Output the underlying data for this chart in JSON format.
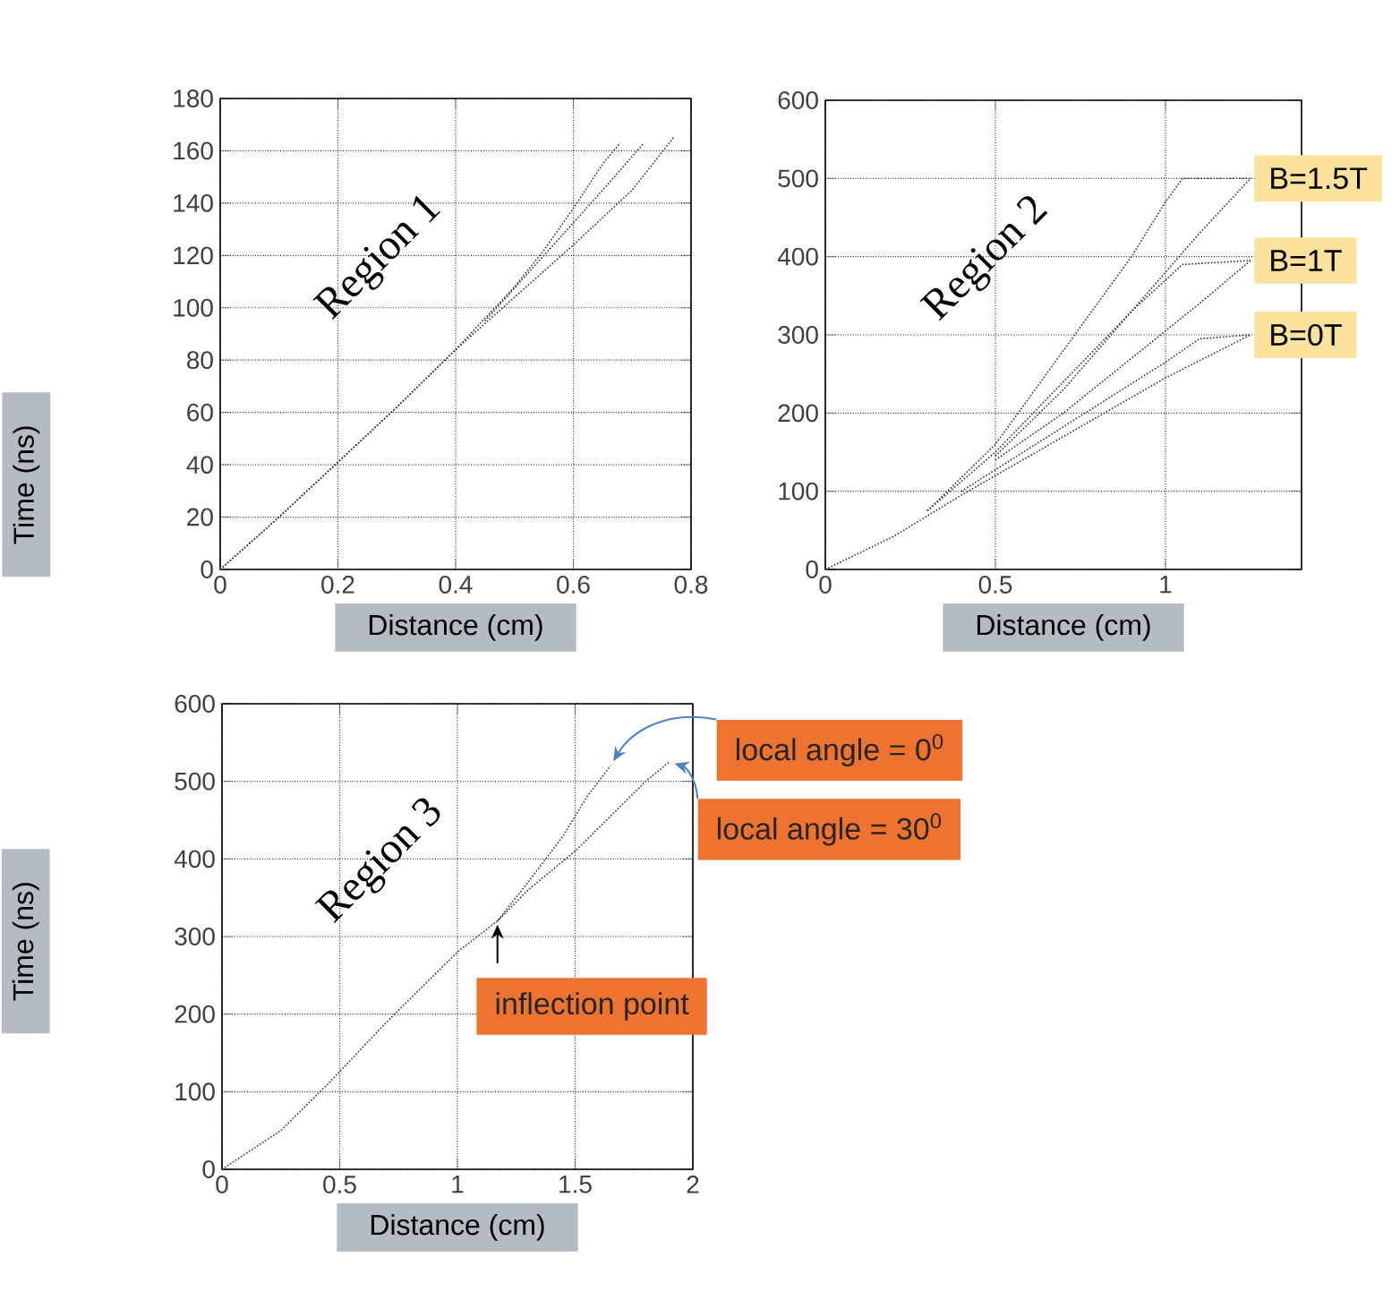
{
  "chart_data": [
    {
      "type": "line",
      "xlabel": "Distance (cm)",
      "ylabel": "Time (ns)",
      "xlim": [
        0,
        0.8
      ],
      "ylim": [
        0,
        180
      ],
      "xticks": [
        0,
        0.2,
        0.4,
        0.6,
        0.8
      ],
      "yticks": [
        0,
        20,
        40,
        60,
        80,
        100,
        120,
        140,
        160,
        180
      ],
      "grid": true,
      "line_style": "dotted",
      "marker": "none",
      "annotations": [
        "Region 1"
      ],
      "series": [
        {
          "color": "#333333",
          "x": [
            0,
            0.1,
            0.2,
            0.3,
            0.4,
            0.5,
            0.55,
            0.6,
            0.65,
            0.68
          ],
          "values": [
            0,
            20,
            41,
            62,
            84,
            108,
            122,
            138,
            155,
            163
          ]
        },
        {
          "color": "#333333",
          "x": [
            0.45,
            0.55,
            0.65,
            0.72
          ],
          "values": [
            95,
            120,
            145,
            163
          ]
        },
        {
          "color": "#333333",
          "x": [
            0,
            0.1,
            0.2,
            0.3,
            0.4,
            0.5,
            0.6,
            0.7,
            0.77
          ],
          "values": [
            0,
            20,
            41,
            62,
            84,
            104,
            124,
            145,
            165
          ]
        }
      ]
    },
    {
      "type": "line",
      "xlabel": "Distance (cm)",
      "xlim": [
        0,
        1.4
      ],
      "ylim": [
        0,
        600
      ],
      "xticks": [
        0,
        0.5,
        1
      ],
      "yticks": [
        0,
        100,
        200,
        300,
        400,
        500,
        600
      ],
      "grid": true,
      "line_style": "dotted",
      "marker": "none",
      "annotations": [
        "Region 2",
        {
          "text": "B=1.5T",
          "x": 1.25,
          "y": 500
        },
        {
          "text": "B=1T",
          "x": 1.25,
          "y": 395
        },
        {
          "text": "B=0T",
          "x": 1.25,
          "y": 300
        }
      ],
      "series": [
        {
          "color": "#333333",
          "x": [
            0,
            0.2,
            0.4,
            0.6,
            0.8,
            1.0,
            1.25
          ],
          "values": [
            0,
            42,
            95,
            145,
            195,
            245,
            300
          ]
        },
        {
          "color": "#333333",
          "x": [
            0.4,
            0.6,
            0.8,
            1.0,
            1.1,
            1.25
          ],
          "values": [
            100,
            155,
            210,
            265,
            295,
            300
          ]
        },
        {
          "color": "#333333",
          "x": [
            0.3,
            0.5,
            0.7,
            0.9,
            1.05,
            1.25
          ],
          "values": [
            75,
            150,
            240,
            330,
            390,
            395
          ]
        },
        {
          "color": "#333333",
          "x": [
            0.5,
            0.7,
            0.9,
            1.1,
            1.25
          ],
          "values": [
            140,
            200,
            270,
            340,
            395
          ]
        },
        {
          "color": "#333333",
          "x": [
            0.3,
            0.5,
            0.7,
            0.9,
            1.0,
            1.05,
            1.25
          ],
          "values": [
            75,
            160,
            280,
            400,
            470,
            500,
            500
          ]
        },
        {
          "color": "#333333",
          "x": [
            0.5,
            0.7,
            0.9,
            1.1,
            1.25
          ],
          "values": [
            145,
            230,
            330,
            430,
            500
          ]
        }
      ]
    },
    {
      "type": "line",
      "xlabel": "Distance (cm)",
      "ylabel": "Time (ns)",
      "xlim": [
        0,
        2
      ],
      "ylim": [
        0,
        600
      ],
      "xticks": [
        0,
        0.5,
        1,
        1.5,
        2
      ],
      "yticks": [
        0,
        100,
        200,
        300,
        400,
        500,
        600
      ],
      "grid": true,
      "line_style": "dotted",
      "marker": "none",
      "annotations": [
        "Region 3",
        {
          "text": "local angle = 0$^{0}$",
          "x": 1.65,
          "y": 520
        },
        {
          "text": "local angle = 30$^{0}$",
          "x": 1.9,
          "y": 525
        },
        {
          "text": "inflection point",
          "x": 1.17,
          "y": 320
        }
      ],
      "series": [
        {
          "color": "#333333",
          "x": [
            0,
            0.25,
            0.45,
            0.7,
            0.9,
            1.0,
            1.17,
            1.3,
            1.45,
            1.55,
            1.65
          ],
          "values": [
            0,
            50,
            110,
            190,
            250,
            280,
            320,
            370,
            430,
            480,
            520
          ]
        },
        {
          "color": "#333333",
          "x": [
            1.17,
            1.3,
            1.5,
            1.7,
            1.8,
            1.9
          ],
          "values": [
            320,
            360,
            410,
            470,
            500,
            525
          ]
        }
      ]
    }
  ]
}
